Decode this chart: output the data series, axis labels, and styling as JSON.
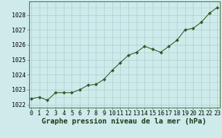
{
  "x": [
    0,
    1,
    2,
    3,
    4,
    5,
    6,
    7,
    8,
    9,
    10,
    11,
    12,
    13,
    14,
    15,
    16,
    17,
    18,
    19,
    20,
    21,
    22,
    23
  ],
  "y": [
    1022.4,
    1022.5,
    1022.3,
    1022.8,
    1022.8,
    1022.8,
    1023.0,
    1023.3,
    1023.35,
    1023.7,
    1024.3,
    1024.8,
    1025.3,
    1025.5,
    1025.9,
    1025.7,
    1025.5,
    1025.9,
    1026.3,
    1027.0,
    1027.1,
    1027.5,
    1028.1,
    1028.5
  ],
  "ylim": [
    1021.8,
    1028.9
  ],
  "yticks": [
    1022,
    1023,
    1024,
    1025,
    1026,
    1027,
    1028
  ],
  "xticks": [
    0,
    1,
    2,
    3,
    4,
    5,
    6,
    7,
    8,
    9,
    10,
    11,
    12,
    13,
    14,
    15,
    16,
    17,
    18,
    19,
    20,
    21,
    22,
    23
  ],
  "xlabel": "Graphe pression niveau de la mer (hPa)",
  "line_color": "#2d5a27",
  "marker_color": "#2d5a27",
  "bg_color": "#ceeaea",
  "grid_color": "#aacece",
  "border_color": "#4a7a4a",
  "xlabel_fontsize": 7.5,
  "tick_fontsize": 6,
  "figsize": [
    3.2,
    2.0
  ],
  "dpi": 100
}
